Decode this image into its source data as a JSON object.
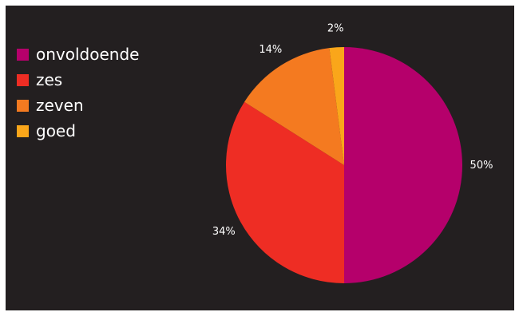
{
  "chart_data": {
    "type": "pie",
    "categories": [
      "onvoldoende",
      "zes",
      "zeven",
      "goed"
    ],
    "values": [
      50,
      34,
      14,
      2
    ],
    "labels": [
      "50%",
      "34%",
      "14%",
      "2%"
    ],
    "colors": [
      "#b5006b",
      "#ee2d24",
      "#f47a20",
      "#faa61a"
    ],
    "legend_position": "top-left",
    "start_angle_deg": 0,
    "direction": "clockwise"
  }
}
